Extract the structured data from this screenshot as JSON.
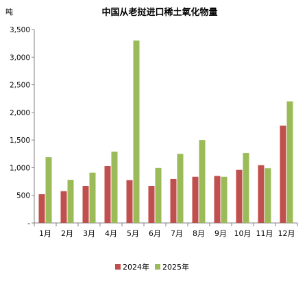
{
  "chart_data": {
    "type": "bar",
    "title": "中国从老挝进口稀土氧化物量",
    "unit": "吨",
    "categories": [
      "1月",
      "2月",
      "3月",
      "4月",
      "5月",
      "6月",
      "7月",
      "8月",
      "9月",
      "10月",
      "11月",
      "12月"
    ],
    "series": [
      {
        "name": "2024年",
        "color": "#c0504d",
        "values": [
          520,
          575,
          670,
          1030,
          775,
          670,
          795,
          835,
          850,
          960,
          1045,
          1760
        ]
      },
      {
        "name": "2025年",
        "color": "#9bbb59",
        "values": [
          1190,
          780,
          910,
          1290,
          3300,
          995,
          1250,
          1500,
          835,
          1265,
          990,
          2200
        ]
      }
    ],
    "ylim": [
      0,
      3500
    ],
    "yticks": [
      {
        "value": 0,
        "label": "-"
      },
      {
        "value": 500,
        "label": "500"
      },
      {
        "value": 1000,
        "label": "1,000"
      },
      {
        "value": 1500,
        "label": "1,500"
      },
      {
        "value": 2000,
        "label": "2,000"
      },
      {
        "value": 2500,
        "label": "2,500"
      },
      {
        "value": 3000,
        "label": "3,000"
      },
      {
        "value": 3500,
        "label": "3,500"
      }
    ],
    "grid": false,
    "legend": "bottom"
  }
}
